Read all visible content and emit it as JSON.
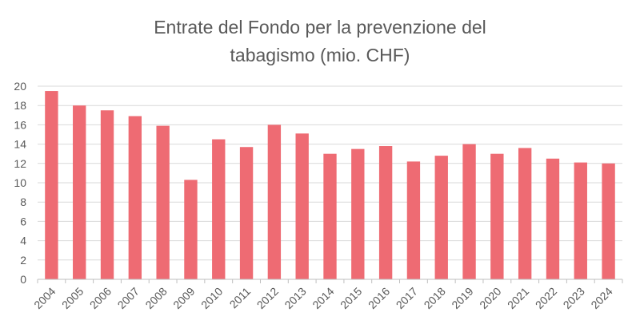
{
  "chart_data": {
    "type": "bar",
    "title": "Entrate del Fondo per la prevenzione del tabagismo (mio. CHF)",
    "xlabel": "",
    "ylabel": "",
    "categories": [
      "2004",
      "2005",
      "2006",
      "2007",
      "2008",
      "2009",
      "2010",
      "2011",
      "2012",
      "2013",
      "2014",
      "2015",
      "2016",
      "2017",
      "2018",
      "2019",
      "2020",
      "2021",
      "2022",
      "2023",
      "2024"
    ],
    "series": [
      {
        "values": [
          19.5,
          18.0,
          17.5,
          16.9,
          15.9,
          10.3,
          14.5,
          13.7,
          16.0,
          15.1,
          13.0,
          13.5,
          13.8,
          12.2,
          12.8,
          14.0,
          13.0,
          13.6,
          12.5,
          12.1,
          12.0
        ]
      }
    ],
    "ylim": [
      0,
      20
    ],
    "yticks": [
      0,
      2,
      4,
      6,
      8,
      10,
      12,
      14,
      16,
      18,
      20
    ],
    "grid": true,
    "legend": "none",
    "bar_color": "#ee6b73",
    "grid_color": "#d9d9d9",
    "axis_color": "#bfbfbf"
  }
}
